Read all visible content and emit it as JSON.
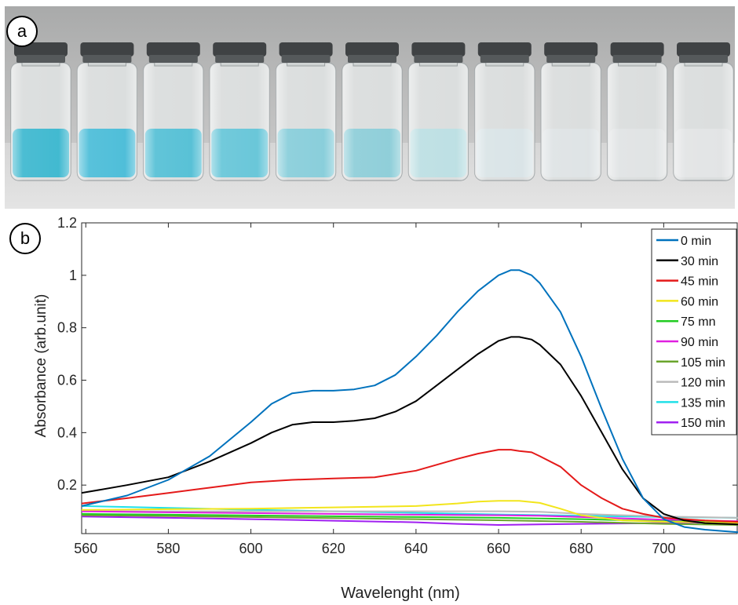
{
  "panels": {
    "a_label": "a",
    "b_label": "b"
  },
  "photo": {
    "vial_count": 11,
    "liquid_colors": [
      "#2fb3cc",
      "#3eb8d6",
      "#49bcd3",
      "#5cc2d6",
      "#7fcad8",
      "#86cad6",
      "#b8dde2",
      "#d8e3e6",
      "#dde2e4",
      "#dfe2e3",
      "#e1e3e4"
    ]
  },
  "chart_data": {
    "type": "line",
    "title": "",
    "xlabel": "Wavelenght (nm)",
    "ylabel": "Absorbance (arb.unit)",
    "xlim": [
      559,
      718
    ],
    "ylim": [
      0.015,
      1.2
    ],
    "xticks": [
      560,
      580,
      600,
      620,
      640,
      660,
      680,
      700
    ],
    "yticks": [
      0.2,
      0.4,
      0.6,
      0.8,
      1,
      1.2
    ],
    "grid": false,
    "legend_position": "top-right",
    "series": [
      {
        "name": "0 min",
        "color": "#0072bd",
        "x": [
          559,
          570,
          580,
          590,
          600,
          605,
          610,
          615,
          620,
          625,
          630,
          635,
          640,
          645,
          650,
          655,
          660,
          663,
          665,
          668,
          670,
          675,
          680,
          685,
          690,
          695,
          700,
          705,
          710,
          718
        ],
        "y": [
          0.12,
          0.16,
          0.22,
          0.31,
          0.44,
          0.51,
          0.55,
          0.56,
          0.56,
          0.565,
          0.58,
          0.62,
          0.69,
          0.77,
          0.86,
          0.94,
          1.0,
          1.02,
          1.02,
          1.0,
          0.97,
          0.86,
          0.69,
          0.49,
          0.3,
          0.15,
          0.07,
          0.04,
          0.03,
          0.02
        ]
      },
      {
        "name": "30 min",
        "color": "#000000",
        "x": [
          559,
          570,
          580,
          590,
          600,
          605,
          610,
          615,
          620,
          625,
          630,
          635,
          640,
          645,
          650,
          655,
          660,
          663,
          665,
          668,
          670,
          675,
          680,
          685,
          690,
          695,
          700,
          705,
          710,
          718
        ],
        "y": [
          0.17,
          0.2,
          0.23,
          0.29,
          0.36,
          0.4,
          0.43,
          0.44,
          0.44,
          0.445,
          0.455,
          0.48,
          0.52,
          0.58,
          0.64,
          0.7,
          0.75,
          0.765,
          0.765,
          0.755,
          0.735,
          0.66,
          0.54,
          0.4,
          0.26,
          0.15,
          0.09,
          0.065,
          0.055,
          0.05
        ]
      },
      {
        "name": "45 min",
        "color": "#e41a1a",
        "x": [
          559,
          570,
          580,
          590,
          600,
          610,
          620,
          630,
          640,
          650,
          655,
          660,
          663,
          665,
          668,
          670,
          675,
          680,
          685,
          690,
          695,
          700,
          705,
          710,
          718
        ],
        "y": [
          0.13,
          0.15,
          0.17,
          0.19,
          0.21,
          0.22,
          0.225,
          0.23,
          0.255,
          0.3,
          0.32,
          0.335,
          0.335,
          0.33,
          0.325,
          0.31,
          0.27,
          0.2,
          0.15,
          0.11,
          0.09,
          0.075,
          0.07,
          0.065,
          0.06
        ]
      },
      {
        "name": "60 min",
        "color": "#f2e51c",
        "x": [
          559,
          580,
          600,
          620,
          640,
          650,
          655,
          660,
          665,
          670,
          675,
          680,
          690,
          700,
          710,
          718
        ],
        "y": [
          0.105,
          0.108,
          0.11,
          0.115,
          0.12,
          0.13,
          0.137,
          0.14,
          0.14,
          0.132,
          0.11,
          0.085,
          0.065,
          0.06,
          0.058,
          0.055
        ]
      },
      {
        "name": "75 mn",
        "color": "#22cc22",
        "x": [
          559,
          580,
          600,
          620,
          640,
          660,
          680,
          700,
          718
        ],
        "y": [
          0.09,
          0.087,
          0.084,
          0.081,
          0.078,
          0.075,
          0.07,
          0.062,
          0.058
        ]
      },
      {
        "name": "90 min",
        "color": "#e020e0",
        "x": [
          559,
          580,
          600,
          620,
          640,
          660,
          670,
          680,
          700,
          718
        ],
        "y": [
          0.1,
          0.096,
          0.093,
          0.09,
          0.087,
          0.085,
          0.083,
          0.078,
          0.068,
          0.062
        ]
      },
      {
        "name": "105 min",
        "color": "#6aa52c",
        "x": [
          559,
          580,
          600,
          620,
          640,
          660,
          680,
          700,
          718
        ],
        "y": [
          0.085,
          0.082,
          0.078,
          0.074,
          0.07,
          0.066,
          0.06,
          0.052,
          0.048
        ]
      },
      {
        "name": "120 min",
        "color": "#bbbbbb",
        "x": [
          559,
          580,
          600,
          620,
          640,
          660,
          670,
          680,
          700,
          718
        ],
        "y": [
          0.1,
          0.1,
          0.1,
          0.1,
          0.1,
          0.1,
          0.098,
          0.09,
          0.08,
          0.075
        ]
      },
      {
        "name": "135 min",
        "color": "#20e0e8",
        "x": [
          559,
          580,
          600,
          620,
          640,
          660,
          680,
          700,
          718
        ],
        "y": [
          0.12,
          0.113,
          0.106,
          0.1,
          0.094,
          0.088,
          0.083,
          0.078,
          0.075
        ]
      },
      {
        "name": "150 min",
        "color": "#a020f0",
        "x": [
          559,
          580,
          600,
          620,
          640,
          650,
          660,
          670,
          680,
          700,
          718
        ],
        "y": [
          0.08,
          0.075,
          0.07,
          0.064,
          0.058,
          0.052,
          0.048,
          0.05,
          0.052,
          0.055,
          0.058
        ]
      }
    ]
  }
}
